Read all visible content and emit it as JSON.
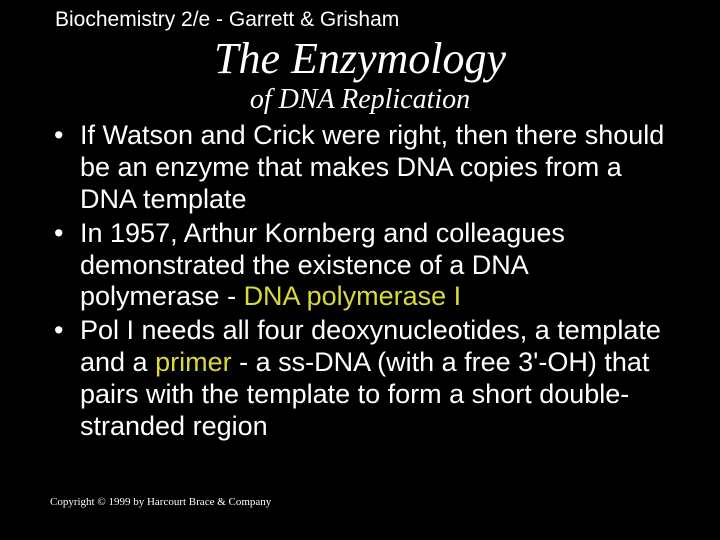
{
  "header": "Biochemistry 2/e - Garrett & Grisham",
  "title": "The Enzymology",
  "subtitle": "of DNA Replication",
  "bullets": [
    {
      "pre": "If Watson and Crick were right, then there should be an enzyme that makes DNA copies from a DNA template",
      "hl": "",
      "post": ""
    },
    {
      "pre": "In 1957, Arthur Kornberg and colleagues demonstrated the existence of a DNA polymerase - ",
      "hl": "DNA polymerase I",
      "post": ""
    },
    {
      "pre": "Pol I needs all four deoxynucleotides, a template and a ",
      "hl": "primer",
      "post": " - a ss-DNA (with a free 3'-OH) that pairs with the template to form a short double-stranded region"
    }
  ],
  "footer": "Copyright © 1999 by Harcourt Brace & Company",
  "colors": {
    "background": "#000000",
    "text": "#ffffff",
    "highlight": "#d9d93a"
  }
}
